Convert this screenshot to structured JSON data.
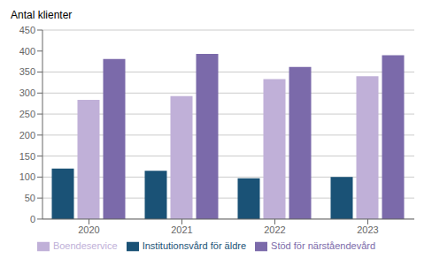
{
  "chart_data": {
    "type": "bar",
    "ylabel": "Antal klienter",
    "categories": [
      "2020",
      "2021",
      "2022",
      "2023"
    ],
    "series": [
      {
        "name": "Institutionsvård för äldre",
        "color": "#1a5276",
        "values": [
          120,
          115,
          97,
          100
        ]
      },
      {
        "name": "Boendeservice",
        "color": "#c0b0d8",
        "values": [
          284,
          293,
          333,
          340
        ]
      },
      {
        "name": "Stöd för närståendevård",
        "color": "#7b6aaa",
        "values": [
          381,
          393,
          362,
          390
        ]
      }
    ],
    "ylim": [
      0,
      450
    ],
    "yticks": [
      0,
      50,
      100,
      150,
      200,
      250,
      300,
      350,
      400,
      450
    ],
    "grid": true,
    "legend": "bottom"
  }
}
